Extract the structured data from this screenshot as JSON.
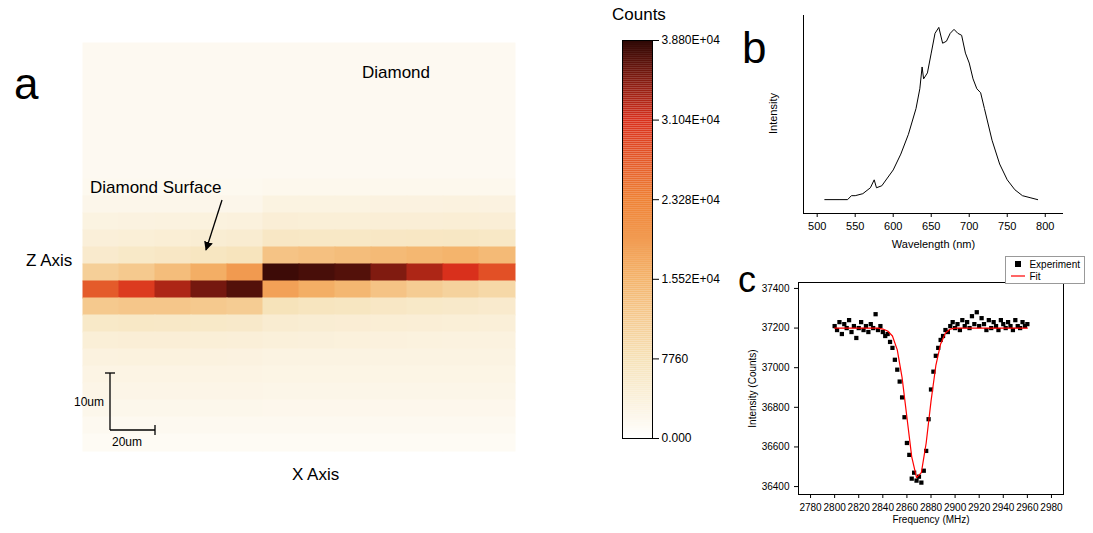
{
  "chart_data": [
    {
      "type": "heatmap",
      "panel": "a",
      "xlabel": "X Axis",
      "ylabel": "Z Axis",
      "tick_labels": false,
      "annotations": [
        "Diamond",
        "Diamond Surface"
      ],
      "scale_bars": [
        "10um",
        "20um"
      ],
      "cells": [
        [
          1500,
          1500,
          1500,
          1500,
          1500,
          1500,
          1500,
          1500,
          1500,
          1500,
          1500,
          1500
        ],
        [
          1500,
          1500,
          1500,
          1500,
          1500,
          1500,
          1500,
          1500,
          1500,
          1500,
          1500,
          1500
        ],
        [
          1500,
          1500,
          1500,
          1500,
          1500,
          1500,
          1500,
          1500,
          1500,
          1500,
          1500,
          1500
        ],
        [
          1500,
          1500,
          1500,
          1500,
          1500,
          1500,
          1500,
          1500,
          1500,
          1500,
          1500,
          1500
        ],
        [
          1500,
          1500,
          1500,
          1500,
          1500,
          1500,
          1500,
          1500,
          1500,
          1500,
          1500,
          1500
        ],
        [
          1500,
          1500,
          1500,
          1500,
          1500,
          1500,
          1500,
          1500,
          1500,
          1500,
          1500,
          1500
        ],
        [
          1500,
          1500,
          1500,
          1500,
          1500,
          1500,
          1500,
          1500,
          1500,
          1500,
          1500,
          1500
        ],
        [
          1500,
          1500,
          1500,
          1500,
          1500,
          1500,
          1500,
          1500,
          1500,
          1500,
          1500,
          1500
        ],
        [
          1700,
          1700,
          1700,
          1700,
          1700,
          2000,
          2000,
          2000,
          2000,
          2000,
          2000,
          2000
        ],
        [
          2300,
          2300,
          2300,
          2300,
          2300,
          3300,
          3300,
          3300,
          3400,
          3400,
          3500,
          3400
        ],
        [
          3300,
          3400,
          3500,
          3600,
          3700,
          4500,
          4400,
          4400,
          4500,
          4500,
          4600,
          4500
        ],
        [
          4200,
          4400,
          4600,
          4800,
          5000,
          6300,
          6200,
          6200,
          6300,
          6400,
          6500,
          6200
        ],
        [
          5500,
          6000,
          6300,
          6800,
          7200,
          13000,
          13500,
          14000,
          14500,
          15000,
          15500,
          14500
        ],
        [
          11000,
          12000,
          14000,
          16500,
          19500,
          38000,
          37500,
          37000,
          35000,
          33000,
          31000,
          28000
        ],
        [
          27000,
          30000,
          33000,
          35500,
          37000,
          18500,
          16500,
          15000,
          13000,
          11500,
          10500,
          9500
        ],
        [
          12000,
          12500,
          12500,
          12000,
          11500,
          7500,
          7000,
          6800,
          6300,
          6000,
          5800,
          5500
        ],
        [
          6000,
          6200,
          6100,
          6000,
          5800,
          5000,
          4800,
          4700,
          4600,
          4500,
          4400,
          4300
        ],
        [
          4400,
          4500,
          4500,
          4400,
          4300,
          4000,
          3900,
          3800,
          3700,
          3600,
          3500,
          3500
        ],
        [
          3500,
          3600,
          3600,
          3500,
          3400,
          3200,
          3200,
          3200,
          3200,
          3200,
          3200,
          3200
        ],
        [
          3000,
          3000,
          3000,
          3000,
          3000,
          2800,
          2800,
          2800,
          2800,
          2800,
          2800,
          2800
        ],
        [
          2600,
          2600,
          2600,
          2600,
          2600,
          2500,
          2500,
          2500,
          2500,
          2500,
          2500,
          2500
        ],
        [
          2200,
          2200,
          2200,
          2200,
          2200,
          2100,
          2100,
          2100,
          2100,
          2100,
          2100,
          2100
        ],
        [
          1600,
          1600,
          1600,
          1600,
          1600,
          1600,
          1600,
          1600,
          1600,
          1600,
          1600,
          1600
        ],
        [
          1200,
          1200,
          1200,
          1200,
          1200,
          1200,
          1200,
          1200,
          1200,
          1200,
          1200,
          1200
        ]
      ],
      "color_label": "Counts",
      "color_range": [
        0,
        38800
      ],
      "color_ticks": [
        {
          "value": 0,
          "label": "0.000"
        },
        7760,
        {
          "value": 15520,
          "label": "1.552E+04"
        },
        {
          "value": 23280,
          "label": "2.328E+04"
        },
        {
          "value": 31040,
          "label": "3.104E+04"
        },
        {
          "value": 38800,
          "label": "3.880E+04"
        }
      ]
    },
    {
      "type": "line",
      "panel": "b",
      "xlabel": "Wavelength (nm)",
      "ylabel": "Intensity",
      "tick_labels": "x",
      "color": "#000000",
      "x": [
        510,
        530,
        540,
        545,
        550,
        560,
        570,
        575,
        578,
        585,
        600,
        610,
        620,
        630,
        635,
        638,
        640,
        645,
        650,
        655,
        660,
        665,
        670,
        675,
        680,
        685,
        690,
        695,
        700,
        705,
        710,
        715,
        720,
        730,
        740,
        750,
        760,
        770,
        780,
        790
      ],
      "values": [
        0.07,
        0.07,
        0.07,
        0.09,
        0.09,
        0.1,
        0.13,
        0.17,
        0.13,
        0.14,
        0.22,
        0.3,
        0.4,
        0.53,
        0.63,
        0.74,
        0.68,
        0.71,
        0.81,
        0.91,
        0.94,
        0.86,
        0.87,
        0.91,
        0.93,
        0.91,
        0.9,
        0.81,
        0.76,
        0.68,
        0.63,
        0.61,
        0.53,
        0.37,
        0.25,
        0.17,
        0.12,
        0.09,
        0.08,
        0.07
      ],
      "xlim": [
        482,
        824
      ],
      "xticks": [
        500,
        550,
        600,
        650,
        700,
        750,
        800
      ],
      "ylim": [
        0,
        1
      ]
    },
    {
      "type": "scatter",
      "panel": "c",
      "xlabel": "Frequency (MHz)",
      "ylabel": "Intensity (Counts)",
      "legend": "top-right",
      "xlim": [
        2770,
        2990
      ],
      "xticks": [
        2780,
        2800,
        2820,
        2840,
        2860,
        2880,
        2900,
        2920,
        2940,
        2960,
        2980
      ],
      "ylim": [
        36360,
        37430
      ],
      "yticks": [
        36400,
        36600,
        36800,
        37000,
        37200,
        37400
      ],
      "series": [
        {
          "name": "Experiment",
          "type": "scatter",
          "marker": "square",
          "color": "#000000",
          "x": [
            2800,
            2802,
            2804,
            2806,
            2808,
            2810,
            2812,
            2814,
            2816,
            2818,
            2820,
            2822,
            2824,
            2826,
            2828,
            2830,
            2832,
            2834,
            2836,
            2838,
            2840,
            2842,
            2844,
            2846,
            2848,
            2850,
            2852,
            2854,
            2856,
            2858,
            2860,
            2862,
            2864,
            2866,
            2868,
            2870,
            2872,
            2874,
            2876,
            2878,
            2880,
            2882,
            2884,
            2886,
            2888,
            2890,
            2892,
            2894,
            2896,
            2898,
            2900,
            2902,
            2904,
            2906,
            2908,
            2910,
            2912,
            2914,
            2916,
            2918,
            2920,
            2922,
            2924,
            2926,
            2928,
            2930,
            2932,
            2934,
            2936,
            2938,
            2940,
            2942,
            2944,
            2946,
            2948,
            2950,
            2952,
            2954,
            2956,
            2958,
            2960
          ],
          "values": [
            37210,
            37190,
            37230,
            37170,
            37220,
            37200,
            37240,
            37180,
            37210,
            37150,
            37200,
            37230,
            37190,
            37210,
            37180,
            37220,
            37200,
            37270,
            37190,
            37210,
            37180,
            37160,
            37170,
            37130,
            37100,
            37040,
            36990,
            36930,
            36850,
            36750,
            36620,
            36560,
            36440,
            36470,
            36430,
            36450,
            36420,
            36480,
            36580,
            36740,
            36890,
            36980,
            37060,
            37100,
            37140,
            37160,
            37190,
            37180,
            37210,
            37230,
            37200,
            37220,
            37190,
            37240,
            37210,
            37230,
            37200,
            37260,
            37220,
            37280,
            37210,
            37250,
            37220,
            37190,
            37240,
            37200,
            37230,
            37210,
            37190,
            37240,
            37220,
            37200,
            37230,
            37210,
            37190,
            37240,
            37210,
            37200,
            37230,
            37210,
            37220
          ]
        },
        {
          "name": "Fit",
          "type": "line",
          "line_style": "solid",
          "color": "#ff0000",
          "x": [
            2800,
            2804,
            2808,
            2812,
            2816,
            2820,
            2824,
            2828,
            2832,
            2836,
            2840,
            2844,
            2848,
            2852,
            2856,
            2860,
            2864,
            2868,
            2872,
            2876,
            2880,
            2884,
            2888,
            2892,
            2896,
            2900,
            2904,
            2908,
            2912,
            2916,
            2920,
            2924,
            2928,
            2932,
            2936,
            2940,
            2944,
            2948,
            2952,
            2956,
            2960
          ],
          "values": [
            37200,
            37200,
            37200,
            37200,
            37200,
            37200,
            37200,
            37200,
            37200,
            37200,
            37195,
            37185,
            37160,
            37090,
            36950,
            36750,
            36550,
            36445,
            36470,
            36620,
            36830,
            37010,
            37120,
            37175,
            37195,
            37200,
            37200,
            37200,
            37200,
            37200,
            37200,
            37200,
            37200,
            37200,
            37200,
            37200,
            37200,
            37200,
            37200,
            37200,
            37200
          ]
        }
      ]
    }
  ]
}
